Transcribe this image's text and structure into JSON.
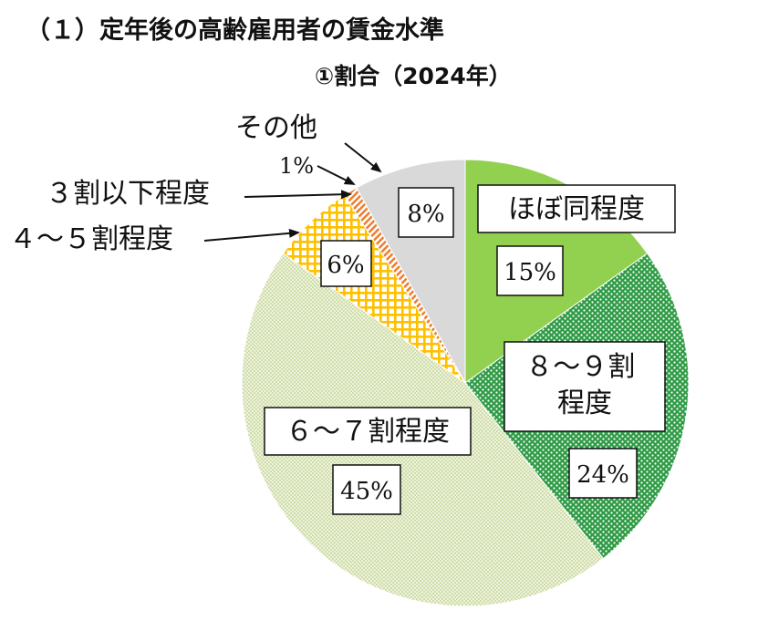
{
  "title": "（１）定年後の高齢雇用者の賃金水準",
  "subtitle": "①割合（2024年）",
  "chart_data": {
    "type": "pie",
    "title": "（１）定年後の高齢雇用者の賃金水準",
    "subtitle": "①割合（2024年）",
    "slices": [
      {
        "name": "ほぼ同程度",
        "value": 15,
        "label": "15%",
        "color": "#92d050"
      },
      {
        "name": "８～９割程度",
        "value": 24,
        "label": "24%",
        "color": "#2e9b45"
      },
      {
        "name": "６～７割程度",
        "value": 45,
        "label": "45%",
        "color": "#e2ecc4"
      },
      {
        "name": "４～５割程度",
        "value": 6,
        "label": "6%",
        "color": "#ffc000"
      },
      {
        "name": "３割以下程度",
        "value": 1,
        "label": "1%",
        "color": "#ed7d31"
      },
      {
        "name": "その他",
        "value": 8,
        "label": "8%",
        "color": "#d9d9d9"
      }
    ],
    "start": "12 o'clock",
    "direction": "clockwise"
  }
}
